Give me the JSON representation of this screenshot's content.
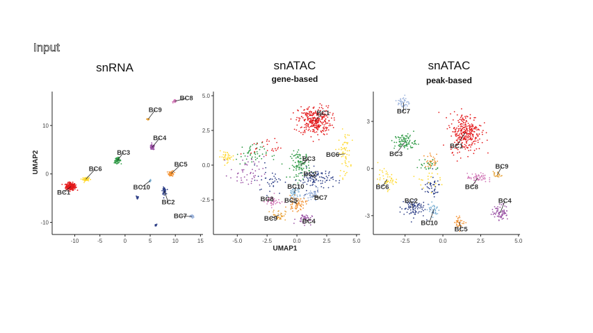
{
  "figure": {
    "header": "Input"
  },
  "colors": {
    "BC1": "#e41a1c",
    "BC2": "#2c3e86",
    "BC3": "#2e9a45",
    "BC4": "#984ea3",
    "BC5": "#f28e2b",
    "BC6": "#ffd92f",
    "BC7": "#9db4dc",
    "BC8": "#d279b8",
    "BC9": "#e8a33a",
    "BC10": "#7fb3d5"
  },
  "chart_data": [
    {
      "type": "scatter",
      "title": "snRNA",
      "subtitle": "",
      "xlabel": "",
      "ylabel": "UMAP2",
      "xlim": [
        -14.5,
        15.5
      ],
      "ylim": [
        -12.5,
        17
      ],
      "xticks": [
        "-10",
        "-5",
        "0",
        "5",
        "10",
        "15"
      ],
      "xtick_values": [
        -10,
        -5,
        0,
        5,
        10,
        15
      ],
      "yticks": [
        "-10",
        "0",
        "10"
      ],
      "ytick_values": [
        -10,
        0,
        10
      ],
      "clusters": [
        {
          "name": "BC1",
          "cx": -10.8,
          "cy": -2.6,
          "sx": 0.9,
          "sy": 0.7,
          "n": 220,
          "label": [
            -12.2,
            -4.3
          ]
        },
        {
          "name": "BC6",
          "cx": -7.8,
          "cy": -1.1,
          "sx": 0.6,
          "sy": 0.35,
          "n": 60,
          "label": [
            -5.9,
            0.6
          ]
        },
        {
          "name": "BC3",
          "cx": -1.5,
          "cy": 2.8,
          "sx": 0.6,
          "sy": 0.5,
          "n": 60,
          "label": [
            -0.3,
            4.0
          ]
        },
        {
          "name": "BC9",
          "cx": 4.6,
          "cy": 11.3,
          "sx": 0.25,
          "sy": 0.25,
          "n": 20,
          "label": [
            6.0,
            12.8
          ]
        },
        {
          "name": "BC4",
          "cx": 5.4,
          "cy": 5.5,
          "sx": 0.45,
          "sy": 0.5,
          "n": 55,
          "label": [
            6.9,
            7.0
          ]
        },
        {
          "name": "BC8",
          "cx": 9.9,
          "cy": 15.0,
          "sx": 0.3,
          "sy": 0.25,
          "n": 30,
          "label": [
            12.2,
            15.2
          ]
        },
        {
          "name": "BC5",
          "cx": 9.2,
          "cy": 0.1,
          "sx": 0.5,
          "sy": 0.55,
          "n": 45,
          "label": [
            11.1,
            1.5
          ]
        },
        {
          "name": "BC10",
          "cx": 5.0,
          "cy": -1.4,
          "sx": 0.2,
          "sy": 0.2,
          "n": 10,
          "label": [
            3.3,
            -3.2
          ]
        },
        {
          "name": "BC2",
          "cx": 7.8,
          "cy": -3.5,
          "sx": 0.35,
          "sy": 0.65,
          "n": 55,
          "label": [
            8.6,
            -6.3
          ]
        },
        {
          "name": "BC2",
          "cx": 2.4,
          "cy": -4.8,
          "sx": 0.2,
          "sy": 0.3,
          "n": 14,
          "label": null
        },
        {
          "name": "BC2",
          "cx": 6.1,
          "cy": -10.6,
          "sx": 0.2,
          "sy": 0.2,
          "n": 14,
          "label": null
        },
        {
          "name": "BC7",
          "cx": 13.3,
          "cy": -8.8,
          "sx": 0.35,
          "sy": 0.35,
          "n": 45,
          "label": [
            11.0,
            -9.1
          ]
        }
      ]
    },
    {
      "type": "scatter",
      "title": "snATAC",
      "subtitle": "gene-based",
      "xlabel": "UMAP1",
      "ylabel": "",
      "xlim": [
        -7,
        5.3
      ],
      "ylim": [
        -5.0,
        5.3
      ],
      "xticks": [
        "-5.0",
        "-2.5",
        "0.0",
        "2.5",
        "5.0"
      ],
      "xtick_values": [
        -5,
        -2.5,
        0,
        2.5,
        5
      ],
      "yticks": [
        "-2.5",
        "0.0",
        "2.5",
        "5.0"
      ],
      "ytick_values": [
        -2.5,
        0,
        2.5,
        5
      ],
      "clusters": [
        {
          "name": "BC1",
          "cx": 1.5,
          "cy": 3.2,
          "sx": 1.25,
          "sy": 0.95,
          "n": 300,
          "label": [
            2.2,
            3.6
          ]
        },
        {
          "name": "BC6",
          "cx": 4.0,
          "cy": 0.8,
          "sx": 0.45,
          "sy": 1.5,
          "n": 60,
          "label": [
            3.0,
            0.6
          ]
        },
        {
          "name": "BC6",
          "cx": -5.9,
          "cy": 0.6,
          "sx": 0.6,
          "sy": 0.35,
          "n": 35,
          "label": null
        },
        {
          "name": "BC3",
          "cx": 0.3,
          "cy": 0.0,
          "sx": 0.75,
          "sy": 0.9,
          "n": 100,
          "label": [
            1.0,
            0.3
          ]
        },
        {
          "name": "BC2",
          "cx": 1.6,
          "cy": -1.0,
          "sx": 1.3,
          "sy": 0.7,
          "n": 100,
          "label": [
            1.1,
            -0.8
          ]
        },
        {
          "name": "BC10",
          "cx": -0.2,
          "cy": -2.0,
          "sx": 0.5,
          "sy": 0.4,
          "n": 45,
          "label": [
            -0.1,
            -1.7
          ]
        },
        {
          "name": "BC7",
          "cx": 1.3,
          "cy": -2.2,
          "sx": 0.5,
          "sy": 0.45,
          "n": 45,
          "label": [
            2.0,
            -2.5
          ]
        },
        {
          "name": "BC8",
          "cx": -2.0,
          "cy": -2.6,
          "sx": 0.6,
          "sy": 0.4,
          "n": 45,
          "label": [
            -2.5,
            -2.6
          ]
        },
        {
          "name": "BC5",
          "cx": 0.0,
          "cy": -2.8,
          "sx": 0.7,
          "sy": 0.45,
          "n": 60,
          "label": [
            -0.5,
            -2.7
          ]
        },
        {
          "name": "BC9",
          "cx": -1.5,
          "cy": -3.6,
          "sx": 0.5,
          "sy": 0.35,
          "n": 35,
          "label": [
            -2.2,
            -4.0
          ]
        },
        {
          "name": "BC4",
          "cx": 0.6,
          "cy": -3.9,
          "sx": 0.6,
          "sy": 0.35,
          "n": 45,
          "label": [
            1.0,
            -4.2
          ]
        },
        {
          "name": "BC3",
          "cx": -3.8,
          "cy": 0.8,
          "sx": 1.2,
          "sy": 0.7,
          "n": 50,
          "label": null
        },
        {
          "name": "BC4",
          "cx": -4.2,
          "cy": -0.6,
          "sx": 1.3,
          "sy": 1.1,
          "n": 50,
          "label": null
        },
        {
          "name": "BC2",
          "cx": -2.2,
          "cy": -1.0,
          "sx": 1.0,
          "sy": 1.0,
          "n": 35,
          "label": null
        },
        {
          "name": "BC1",
          "cx": -2.5,
          "cy": 1.3,
          "sx": 1.2,
          "sy": 0.6,
          "n": 25,
          "label": null
        }
      ]
    },
    {
      "type": "scatter",
      "title": "snATAC",
      "subtitle": "peak-based",
      "xlabel": "",
      "ylabel": "",
      "xlim": [
        -4.6,
        5.1
      ],
      "ylim": [
        -4.2,
        4.9
      ],
      "xticks": [
        "-2.5",
        "0.0",
        "2.5",
        "5.0"
      ],
      "xtick_values": [
        -2.5,
        0,
        2.5,
        5
      ],
      "yticks": [
        "-3",
        "0",
        "3"
      ],
      "ytick_values": [
        -3,
        0,
        3
      ],
      "clusters": [
        {
          "name": "BC7",
          "cx": -2.6,
          "cy": 4.2,
          "sx": 0.35,
          "sy": 0.4,
          "n": 45,
          "label": [
            -2.6,
            3.5
          ]
        },
        {
          "name": "BC1",
          "cx": 1.5,
          "cy": 2.3,
          "sx": 0.95,
          "sy": 1.1,
          "n": 300,
          "label": [
            0.9,
            1.3
          ]
        },
        {
          "name": "BC3",
          "cx": -2.5,
          "cy": 1.7,
          "sx": 0.65,
          "sy": 0.45,
          "n": 90,
          "label": [
            -3.1,
            0.8
          ]
        },
        {
          "name": "BC6",
          "cx": -3.7,
          "cy": -0.7,
          "sx": 0.55,
          "sy": 0.55,
          "n": 45,
          "label": [
            -4.0,
            -1.3
          ]
        },
        {
          "name": "BC2",
          "cx": -2.0,
          "cy": -2.5,
          "sx": 0.75,
          "sy": 0.55,
          "n": 85,
          "label": [
            -2.1,
            -2.2
          ]
        },
        {
          "name": "BC10",
          "cx": -0.6,
          "cy": -2.6,
          "sx": 0.35,
          "sy": 0.4,
          "n": 35,
          "label": [
            -0.9,
            -3.6
          ]
        },
        {
          "name": "BC2",
          "cx": -0.8,
          "cy": -1.2,
          "sx": 0.6,
          "sy": 0.6,
          "n": 40,
          "label": null
        },
        {
          "name": "BC8",
          "cx": 2.3,
          "cy": -0.6,
          "sx": 0.6,
          "sy": 0.25,
          "n": 55,
          "label": [
            1.9,
            -1.3
          ]
        },
        {
          "name": "BC9",
          "cx": 3.6,
          "cy": -0.4,
          "sx": 0.25,
          "sy": 0.2,
          "n": 20,
          "label": [
            3.9,
            0.0
          ]
        },
        {
          "name": "BC4",
          "cx": 3.8,
          "cy": -2.8,
          "sx": 0.5,
          "sy": 0.45,
          "n": 70,
          "label": [
            4.1,
            -2.2
          ]
        },
        {
          "name": "BC5",
          "cx": 1.1,
          "cy": -3.4,
          "sx": 0.3,
          "sy": 0.35,
          "n": 35,
          "label": [
            1.2,
            -4.0
          ]
        },
        {
          "name": "BC5",
          "cx": -0.7,
          "cy": 0.5,
          "sx": 0.5,
          "sy": 0.4,
          "n": 30,
          "label": null
        },
        {
          "name": "BC3",
          "cx": -1.0,
          "cy": 0.2,
          "sx": 0.7,
          "sy": 0.5,
          "n": 25,
          "label": null
        },
        {
          "name": "BC6",
          "cx": -1.0,
          "cy": -0.7,
          "sx": 0.7,
          "sy": 0.5,
          "n": 20,
          "label": null
        }
      ]
    }
  ]
}
